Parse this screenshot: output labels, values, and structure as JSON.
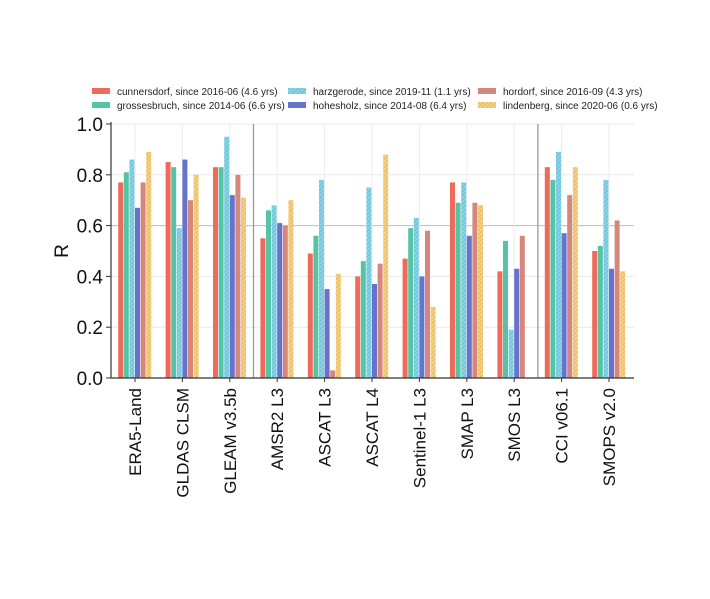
{
  "chart_data": {
    "type": "bar",
    "ylabel": "R",
    "xlabel": "",
    "ylim": [
      0,
      1
    ],
    "yticks": [
      "0.0",
      "0.2",
      "0.4",
      "0.6",
      "0.8",
      "1.0"
    ],
    "grid": true,
    "legend_placement": "top",
    "categories": [
      "ERA5-Land",
      "GLDAS CLSM",
      "GLEAM v3.5b",
      "AMSR2 L3",
      "ASCAT L3",
      "ASCAT L4",
      "Sentinel-1 L3",
      "SMAP L3",
      "SMOS L3",
      "CCI v06.1",
      "SMOPS v2.0"
    ],
    "series": [
      {
        "name": "cunnersdorf, since 2016-06 (4.6 yrs)",
        "color": "#ee6a5b",
        "hatched": false,
        "values": [
          0.77,
          0.85,
          0.83,
          0.55,
          0.49,
          0.4,
          0.47,
          0.77,
          0.42,
          0.83,
          0.5
        ]
      },
      {
        "name": "grossesbruch, since 2014-06 (6.6 yrs)",
        "color": "#55c4a6",
        "hatched": false,
        "values": [
          0.81,
          0.83,
          0.83,
          0.66,
          0.56,
          0.46,
          0.59,
          0.69,
          0.54,
          0.78,
          0.52
        ]
      },
      {
        "name": "harzgerode, since 2019-11 (1.1 yrs)",
        "color": "#86d4e8",
        "hatched": true,
        "values": [
          0.86,
          0.59,
          0.95,
          0.68,
          0.78,
          0.75,
          0.63,
          0.77,
          0.19,
          0.89,
          0.78
        ]
      },
      {
        "name": "hohesholz, since 2014-08 (6.4 yrs)",
        "color": "#6673cc",
        "hatched": false,
        "values": [
          0.67,
          0.86,
          0.72,
          0.61,
          0.35,
          0.37,
          0.4,
          0.56,
          0.43,
          0.57,
          0.43
        ]
      },
      {
        "name": "hordorf, since 2016-09 (4.3 yrs)",
        "color": "#d4877a",
        "hatched": false,
        "values": [
          0.77,
          0.7,
          0.8,
          0.6,
          0.03,
          0.45,
          0.58,
          0.69,
          0.56,
          0.72,
          0.62
        ]
      },
      {
        "name": "lindenberg, since 2020-06 (0.6 yrs)",
        "color": "#f7cf80",
        "hatched": true,
        "values": [
          0.89,
          0.8,
          0.71,
          0.7,
          0.41,
          0.88,
          0.28,
          0.68,
          null,
          0.83,
          0.42
        ]
      }
    ]
  }
}
